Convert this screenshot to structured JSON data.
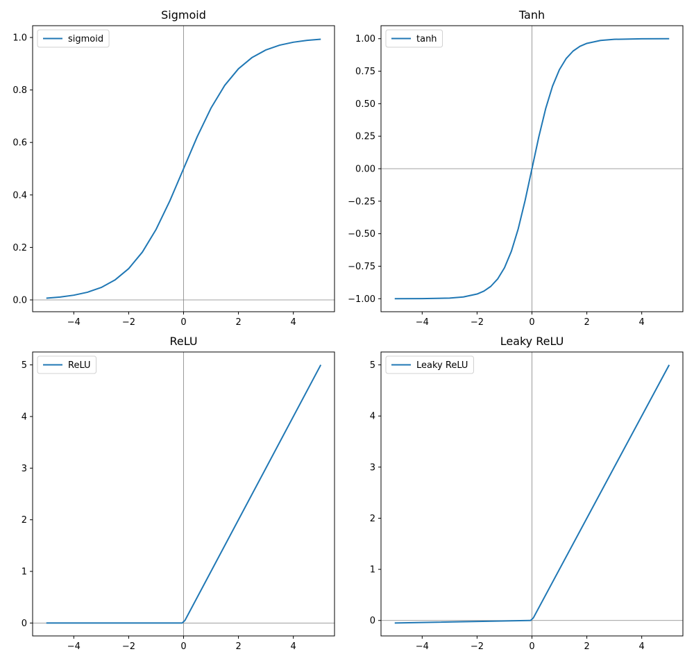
{
  "chart_data": [
    {
      "type": "line",
      "title": "Sigmoid",
      "xlim": [
        -5.5,
        5.5
      ],
      "ylim": [
        -0.045,
        1.045
      ],
      "xticks": [
        -4,
        -2,
        0,
        2,
        4
      ],
      "xtick_labels": [
        "−4",
        "−2",
        "0",
        "2",
        "4"
      ],
      "yticks": [
        0.0,
        0.2,
        0.4,
        0.6,
        0.8,
        1.0
      ],
      "ytick_labels": [
        "0.0",
        "0.2",
        "0.4",
        "0.6",
        "0.8",
        "1.0"
      ],
      "reference_lines": {
        "x": 0,
        "y": 0
      },
      "legend": {
        "location": "upper left",
        "entries": [
          "sigmoid"
        ]
      },
      "series": [
        {
          "name": "sigmoid",
          "color": "#1f77b4",
          "x": [
            -5,
            -4.5,
            -4,
            -3.5,
            -3,
            -2.5,
            -2,
            -1.5,
            -1,
            -0.5,
            0,
            0.5,
            1,
            1.5,
            2,
            2.5,
            3,
            3.5,
            4,
            4.5,
            5
          ],
          "y": [
            0.0067,
            0.011,
            0.018,
            0.0293,
            0.0474,
            0.0759,
            0.1192,
            0.1824,
            0.2689,
            0.3775,
            0.5,
            0.6225,
            0.7311,
            0.8176,
            0.8808,
            0.9241,
            0.9526,
            0.9707,
            0.982,
            0.989,
            0.9933
          ]
        }
      ]
    },
    {
      "type": "line",
      "title": "Tanh",
      "xlim": [
        -5.5,
        5.5
      ],
      "ylim": [
        -1.1,
        1.1
      ],
      "xticks": [
        -4,
        -2,
        0,
        2,
        4
      ],
      "xtick_labels": [
        "−4",
        "−2",
        "0",
        "2",
        "4"
      ],
      "yticks": [
        -1.0,
        -0.75,
        -0.5,
        -0.25,
        0.0,
        0.25,
        0.5,
        0.75,
        1.0
      ],
      "ytick_labels": [
        "−1.00",
        "−0.75",
        "−0.50",
        "−0.25",
        "0.00",
        "0.25",
        "0.50",
        "0.75",
        "1.00"
      ],
      "reference_lines": {
        "x": 0,
        "y": 0
      },
      "legend": {
        "location": "upper left",
        "entries": [
          "tanh"
        ]
      },
      "series": [
        {
          "name": "tanh",
          "color": "#1f77b4",
          "x": [
            -5,
            -4,
            -3,
            -2.5,
            -2,
            -1.75,
            -1.5,
            -1.25,
            -1,
            -0.75,
            -0.5,
            -0.25,
            0,
            0.25,
            0.5,
            0.75,
            1,
            1.25,
            1.5,
            1.75,
            2,
            2.5,
            3,
            4,
            5
          ],
          "y": [
            -0.9999,
            -0.9993,
            -0.9951,
            -0.9866,
            -0.964,
            -0.9414,
            -0.9051,
            -0.8483,
            -0.7616,
            -0.6351,
            -0.4621,
            -0.2449,
            0,
            0.2449,
            0.4621,
            0.6351,
            0.7616,
            0.8483,
            0.9051,
            0.9414,
            0.964,
            0.9866,
            0.9951,
            0.9993,
            0.9999
          ]
        }
      ]
    },
    {
      "type": "line",
      "title": "ReLU",
      "xlim": [
        -5.5,
        5.5
      ],
      "ylim": [
        -0.25,
        5.25
      ],
      "xticks": [
        -4,
        -2,
        0,
        2,
        4
      ],
      "xtick_labels": [
        "−4",
        "−2",
        "0",
        "2",
        "4"
      ],
      "yticks": [
        0,
        1,
        2,
        3,
        4,
        5
      ],
      "ytick_labels": [
        "0",
        "1",
        "2",
        "3",
        "4",
        "5"
      ],
      "reference_lines": {
        "x": 0,
        "y": 0
      },
      "legend": {
        "location": "upper left",
        "entries": [
          "ReLU"
        ]
      },
      "series": [
        {
          "name": "ReLU",
          "color": "#1f77b4",
          "x": [
            -5,
            -0.05,
            0.05,
            5
          ],
          "y": [
            0,
            0,
            0.05,
            5
          ]
        }
      ]
    },
    {
      "type": "line",
      "title": "Leaky ReLU",
      "xlim": [
        -5.5,
        5.5
      ],
      "ylim": [
        -0.3025,
        5.2525
      ],
      "xticks": [
        -4,
        -2,
        0,
        2,
        4
      ],
      "xtick_labels": [
        "−4",
        "−2",
        "0",
        "2",
        "4"
      ],
      "yticks": [
        0,
        1,
        2,
        3,
        4,
        5
      ],
      "ytick_labels": [
        "0",
        "1",
        "2",
        "3",
        "4",
        "5"
      ],
      "reference_lines": {
        "x": 0,
        "y": 0
      },
      "legend": {
        "location": "upper left",
        "entries": [
          "Leaky ReLU"
        ]
      },
      "series": [
        {
          "name": "Leaky ReLU",
          "color": "#1f77b4",
          "x": [
            -5,
            -0.05,
            0.05,
            5
          ],
          "y": [
            -0.05,
            -0.0005,
            0.05,
            5
          ]
        }
      ]
    }
  ]
}
